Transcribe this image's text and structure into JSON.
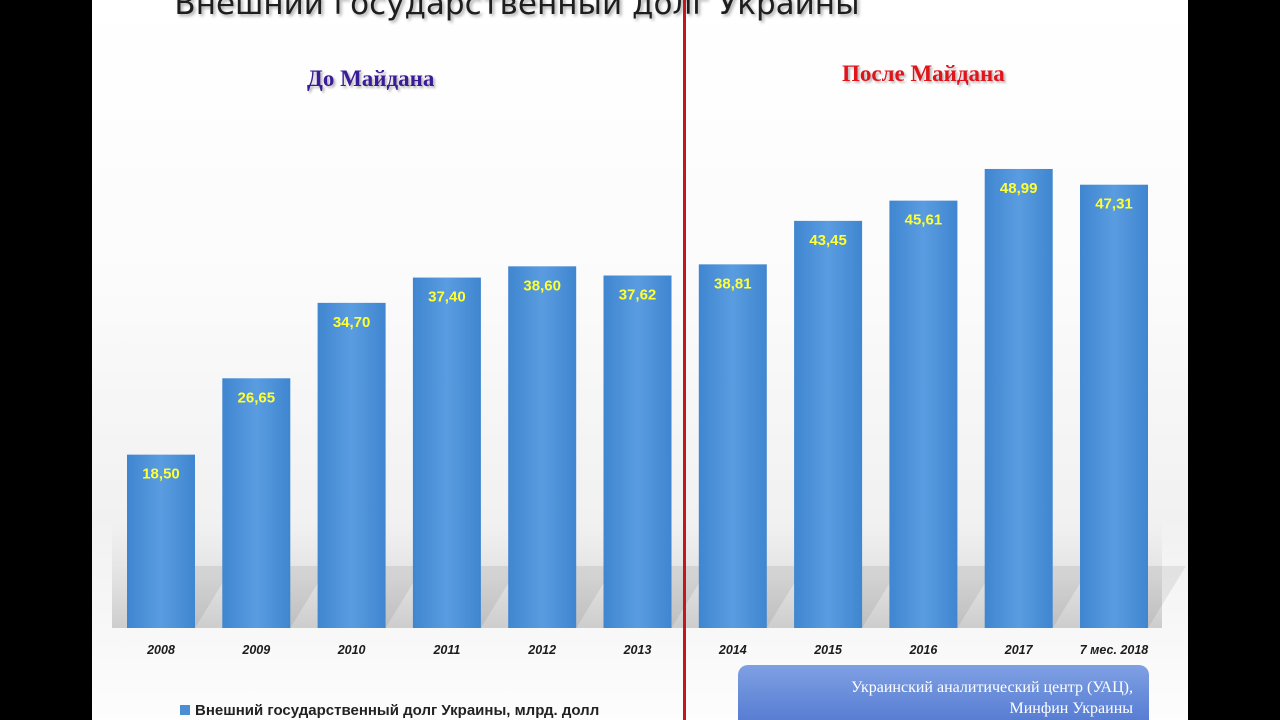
{
  "title": "Внешний государственный долг Украины",
  "period_before": "До Майдана",
  "period_after": "После Майдана",
  "legend": "Внешний государственный долг Украины, млрд. долл",
  "source_line1": "Украинский аналитический центр (УАЦ),",
  "source_line2": "Минфин Украины",
  "colors": {
    "bar": "#4a8fd4",
    "label": "#ffff33",
    "divider": "#c4161c",
    "before": "#3b1c98",
    "after": "#e0141b"
  },
  "chart_data": {
    "type": "bar",
    "title": "Внешний государственный долг Украины",
    "categories": [
      "2008",
      "2009",
      "2010",
      "2011",
      "2012",
      "2013",
      "2014",
      "2015",
      "2016",
      "2017",
      "7 мес. 2018"
    ],
    "series": [
      {
        "name": "Внешний государственный долг Украины, млрд. долл",
        "values": [
          18.5,
          26.65,
          34.7,
          37.4,
          38.6,
          37.62,
          38.81,
          43.45,
          45.61,
          48.99,
          47.31
        ]
      }
    ],
    "value_labels": [
      "18,50",
      "26,65",
      "34,70",
      "37,40",
      "38,60",
      "37,62",
      "38,81",
      "43,45",
      "45,61",
      "48,99",
      "47,31"
    ],
    "ylim": [
      0,
      50
    ],
    "grid": false,
    "legend_position": "bottom-left"
  }
}
